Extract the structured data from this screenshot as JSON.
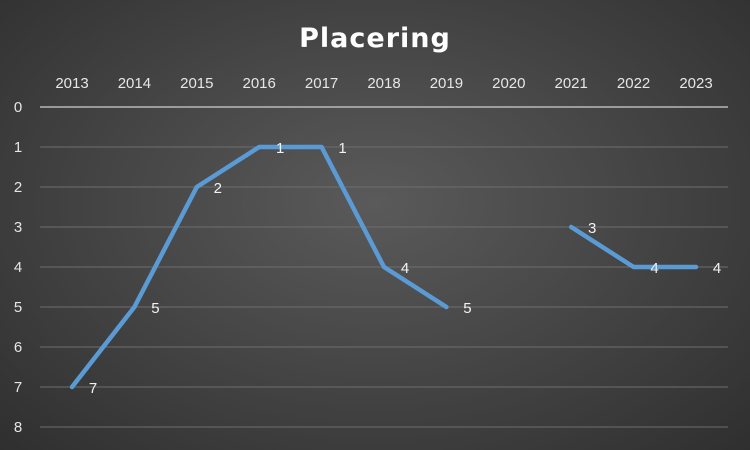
{
  "chart_data": {
    "type": "line",
    "title": "Placering",
    "categories": [
      "2013",
      "2014",
      "2015",
      "2016",
      "2017",
      "2018",
      "2019",
      "2020",
      "2021",
      "2022",
      "2023"
    ],
    "y_ticks": [
      "0",
      "1",
      "2",
      "3",
      "4",
      "5",
      "6",
      "7",
      "8"
    ],
    "ylim": [
      0,
      8
    ],
    "y_axis_reversed": true,
    "x_axis_position": "top",
    "grid": true,
    "series": [
      {
        "values": [
          7,
          5,
          2,
          1,
          1,
          4,
          5,
          null,
          3,
          4,
          4
        ],
        "color": "#5b9bd5",
        "data_labels": true
      }
    ]
  },
  "colors": {
    "line": "#5b9bd5",
    "gridline": "#6e6e6e",
    "axis_line": "#d0d0d0",
    "text": "#e6e6e6"
  }
}
